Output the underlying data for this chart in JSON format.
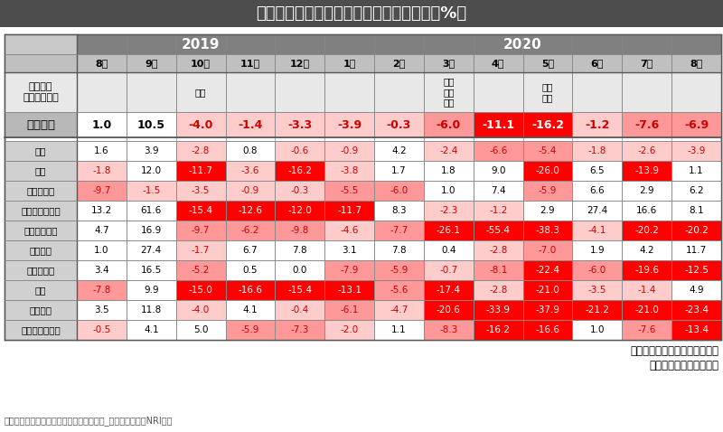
{
  "title": "総務省家計調査　消費支出（前年同月比　%）",
  "footnote": "出所）総務省　家計調査　二人以上の世帯_実質増減率よりNRI作成",
  "annotation_line1": "家計の防衛意識の高まりにより",
  "annotation_line2": "消費支出そのものが減少",
  "months": [
    "8月",
    "9月",
    "10月",
    "11月",
    "12月",
    "1月",
    "2月",
    "3月",
    "4月",
    "5月",
    "6月",
    "7月",
    "8月"
  ],
  "events": {
    "2": "増税",
    "7": "緊急\n事態\n宣言",
    "9": "宣言\n解除"
  },
  "row_labels": [
    "消費支出",
    "食料",
    "住居",
    "光熱・水道",
    "家具・家事用品",
    "被服及び履物",
    "保健医療",
    "交通・通信",
    "教育",
    "教養娯楽",
    "その他消費支出"
  ],
  "row_label_event": "関連する\n主なイベント",
  "data": [
    [
      1.0,
      10.5,
      -4.0,
      -1.4,
      -3.3,
      -3.9,
      -0.3,
      -6.0,
      -11.1,
      -16.2,
      -1.2,
      -7.6,
      -6.9
    ],
    [
      1.6,
      3.9,
      -2.8,
      0.8,
      -0.6,
      -0.9,
      4.2,
      -2.4,
      -6.6,
      -5.4,
      -1.8,
      -2.6,
      -3.9
    ],
    [
      -1.8,
      12.0,
      -11.7,
      -3.6,
      -16.2,
      -3.8,
      1.7,
      1.8,
      9.0,
      -26.0,
      6.5,
      -13.9,
      1.1
    ],
    [
      -9.7,
      -1.5,
      -3.5,
      -0.9,
      -0.3,
      -5.5,
      -6.0,
      1.0,
      7.4,
      -5.9,
      6.6,
      2.9,
      6.2
    ],
    [
      13.2,
      61.6,
      -15.4,
      -12.6,
      -12.0,
      -11.7,
      8.3,
      -2.3,
      -1.2,
      2.9,
      27.4,
      16.6,
      8.1
    ],
    [
      4.7,
      16.9,
      -9.7,
      -6.2,
      -9.8,
      -4.6,
      -7.7,
      -26.1,
      -55.4,
      -38.3,
      -4.1,
      -20.2,
      -20.2
    ],
    [
      1.0,
      27.4,
      -1.7,
      6.7,
      7.8,
      3.1,
      7.8,
      0.4,
      -2.8,
      -7.0,
      1.9,
      4.2,
      11.7
    ],
    [
      3.4,
      16.5,
      -5.2,
      0.5,
      0.0,
      -7.9,
      -5.9,
      -0.7,
      -8.1,
      -22.4,
      -6.0,
      -19.6,
      -12.5
    ],
    [
      -7.8,
      9.9,
      -15.0,
      -16.6,
      -15.4,
      -13.1,
      -5.6,
      -17.4,
      -2.8,
      -21.0,
      -3.5,
      -1.4,
      4.9
    ],
    [
      3.5,
      11.8,
      -4.0,
      4.1,
      -0.4,
      -6.1,
      -4.7,
      -20.6,
      -33.9,
      -37.9,
      -21.2,
      -21.0,
      -23.4
    ],
    [
      -0.5,
      4.1,
      5.0,
      -5.9,
      -7.3,
      -2.0,
      1.1,
      -8.3,
      -16.2,
      -16.6,
      1.0,
      -7.6,
      -13.4
    ]
  ],
  "header_bg": "#4d4d4d",
  "header_text": "#ffffff",
  "year_header_bg": "#808080",
  "month_header_bg": "#c0c0c0",
  "label_col_bg": "#c8c8c8",
  "event_row_bg": "#e8e8e8",
  "main_row_label_bg": "#b8b8b8",
  "sub_row_label_bg": "#d0d0d0",
  "white": "#ffffff",
  "light_pink": "#ffcccc",
  "medium_pink": "#ff9999",
  "strong_red": "#ff0000",
  "dark_red": "#cc0000",
  "border_color": "#888888"
}
